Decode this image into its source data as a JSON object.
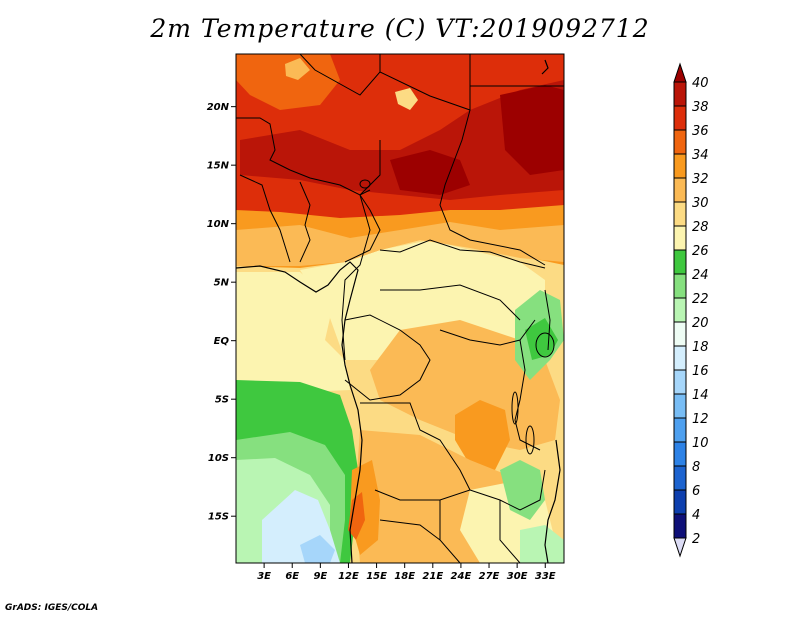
{
  "title": "2m Temperature (C) VT:2019092712",
  "credit": "GrADS: IGES/COLA",
  "map": {
    "lat_ticks": [
      "20N",
      "15N",
      "10N",
      "5N",
      "EQ",
      "5S",
      "10S",
      "15S"
    ],
    "lon_ticks": [
      "3E",
      "6E",
      "9E",
      "12E",
      "15E",
      "18E",
      "21E",
      "24E",
      "27E",
      "30E",
      "33E"
    ],
    "lon_range_deg_e": [
      0,
      35
    ],
    "lat_range_deg": [
      -19,
      24.5
    ]
  },
  "colorbar": {
    "levels": [
      "2",
      "4",
      "6",
      "8",
      "10",
      "12",
      "14",
      "16",
      "18",
      "20",
      "22",
      "24",
      "26",
      "28",
      "30",
      "32",
      "34",
      "36",
      "38",
      "40"
    ],
    "colors": [
      "#dcdcf5",
      "#0e1078",
      "#0d3fae",
      "#1c63cf",
      "#2d82e6",
      "#4ea0ef",
      "#78bdf5",
      "#a6d6fa",
      "#d4eefd",
      "#eefcf4",
      "#b9f5b3",
      "#86e07f",
      "#3fc83f",
      "#fcf4b0",
      "#fcdb84",
      "#fbba55",
      "#f99a1f",
      "#f0650f",
      "#dd2e0a",
      "#ba1508",
      "#9c0000"
    ]
  }
}
